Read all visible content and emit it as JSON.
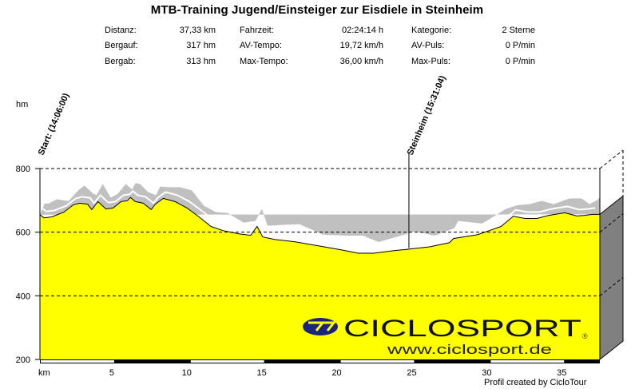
{
  "header": {
    "title": "MTB-Training Jugend/Einsteiger zur Eisdiele in Steinheim"
  },
  "stats": [
    [
      {
        "label": "Distanz:",
        "value": "37,33 km"
      },
      {
        "label": "Bergauf:",
        "value": "317 hm"
      },
      {
        "label": "Bergab:",
        "value": "313 hm"
      }
    ],
    [
      {
        "label": "Fahrzeit:",
        "value": "02:24:14 h"
      },
      {
        "label": "AV-Tempo:",
        "value": "19,72 km/h"
      },
      {
        "label": "Max-Tempo:",
        "value": "36,00 km/h"
      }
    ],
    [
      {
        "label": "Kategorie:",
        "value": "2 Sterne"
      },
      {
        "label": "AV-Puls:",
        "value": "0 P/min"
      },
      {
        "label": "Max-Puls:",
        "value": "0 P/min"
      }
    ]
  ],
  "colors": {
    "profile_fill": "#ffff00",
    "mountain_gray": "#c0c0c0",
    "side_face": "#808080",
    "logo_blue": "#1a237e"
  },
  "logo": {
    "brand": "CICLOSPORT",
    "url": "www.ciclosport.de",
    "registered": "®"
  },
  "footer": {
    "credit": "Profil created by CicloTour"
  },
  "chart_data": {
    "type": "area",
    "title": "MTB-Training Jugend/Einsteiger zur Eisdiele in Steinheim",
    "xlabel": "km",
    "ylabel": "hm",
    "xlim": [
      0,
      37.33
    ],
    "ylim": [
      200,
      800
    ],
    "yticks": [
      200,
      400,
      600,
      800
    ],
    "xticks": [
      5,
      10,
      15,
      20,
      25,
      30,
      35
    ],
    "grid": "horizontal dashed",
    "x": [
      0,
      0.27,
      0.8,
      1.59,
      2.23,
      2.65,
      3.18,
      3.45,
      3.87,
      4.4,
      4.88,
      5.41,
      5.83,
      6.04,
      6.36,
      6.89,
      7.42,
      7.69,
      8.22,
      9.01,
      9.81,
      10.6,
      11.4,
      12.2,
      13.26,
      14.05,
      14.48,
      14.85,
      15.64,
      16.97,
      18.56,
      20.15,
      21.21,
      22.27,
      23.6,
      24.66,
      25.98,
      27.31,
      27.57,
      29.16,
      29.96,
      30.75,
      31.55,
      32.34,
      33.14,
      33.93,
      34.99,
      35.79,
      36.32,
      36.85,
      37.33
    ],
    "y": [
      655,
      645,
      648,
      663,
      686,
      691,
      688,
      671,
      696,
      673,
      676,
      696,
      699,
      709,
      696,
      691,
      671,
      688,
      706,
      696,
      676,
      648,
      618,
      605,
      595,
      590,
      618,
      585,
      577,
      570,
      557,
      544,
      534,
      534,
      542,
      547,
      554,
      567,
      580,
      592,
      605,
      618,
      650,
      643,
      643,
      653,
      661,
      651,
      653,
      656,
      656
    ],
    "waypoints": [
      {
        "label": "Start: (14:06:00)",
        "km": 0
      },
      {
        "label": "Steinheim (15:31:04)",
        "km": 24.6
      }
    ],
    "tick_labels": {
      "y": [
        "200",
        "400",
        "600",
        "800"
      ],
      "x_unit": "km",
      "y_unit": "hm",
      "x": [
        "5",
        "10",
        "15",
        "20",
        "25",
        "30",
        "35"
      ]
    }
  }
}
